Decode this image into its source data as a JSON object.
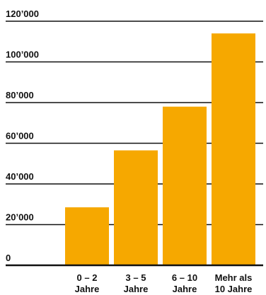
{
  "chart_data": {
    "type": "bar",
    "categories": [
      [
        "0 – 2",
        "Jahre"
      ],
      [
        "3 – 5",
        "Jahre"
      ],
      [
        "6 – 10",
        "Jahre"
      ],
      [
        "Mehr als",
        "10 Jahre"
      ]
    ],
    "values": [
      28500,
      56500,
      78000,
      114000
    ],
    "title": "",
    "xlabel": "",
    "ylabel": "",
    "ylim": [
      0,
      120000
    ],
    "yticks": [
      0,
      20000,
      40000,
      60000,
      80000,
      100000,
      120000
    ],
    "ytick_labels": [
      "0",
      "20’000",
      "40’000",
      "60’000",
      "80’000",
      "100’000",
      "120’000"
    ],
    "grid": true,
    "bar_color": "#F6A800",
    "grid_color": "#111111"
  }
}
